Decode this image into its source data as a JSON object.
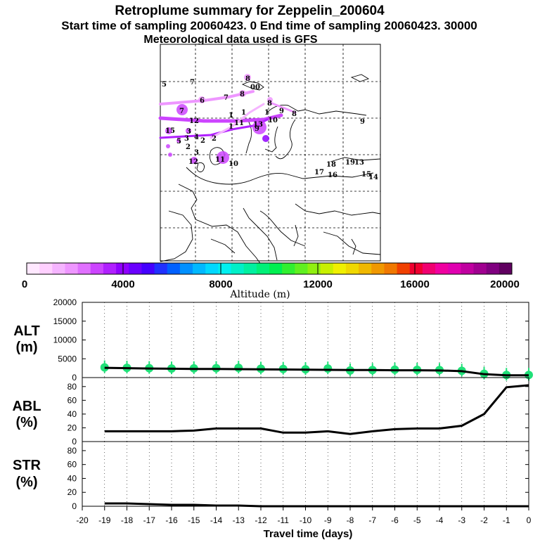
{
  "header": {
    "title": "Retroplume summary for Zeppelin_200604",
    "sampling": "Start time of sampling 20060423.     0     End time of sampling 20060423. 30000",
    "met": "Meteorological data used is GFS"
  },
  "colorbar": {
    "label": "Altitude (m)",
    "ticks": [
      "0",
      "4000",
      "8000",
      "12000",
      "16000",
      "20000"
    ],
    "colors": [
      "#ffe8ff",
      "#ffd0ff",
      "#f5b4ff",
      "#ee96ff",
      "#e070ff",
      "#cc44ff",
      "#b020ff",
      "#9000ff",
      "#6a00ff",
      "#4400ff",
      "#2030ff",
      "#0060ff",
      "#0090ff",
      "#00b8ff",
      "#00d8ff",
      "#00f0f0",
      "#00f0c8",
      "#00f0a0",
      "#00f078",
      "#00f050",
      "#30f030",
      "#60f020",
      "#90f010",
      "#c8f000",
      "#f0f000",
      "#f0d800",
      "#f0b800",
      "#f09800",
      "#f07800",
      "#f04000",
      "#f00030",
      "#f00070",
      "#f000a0",
      "#e000b0",
      "#c000a0",
      "#a00090",
      "#800080",
      "#600060"
    ]
  },
  "map": {
    "labels": [
      {
        "t": "5"
      },
      {
        "t": "7"
      },
      {
        "t": "8"
      },
      {
        "t": "00"
      },
      {
        "t": "6"
      },
      {
        "t": "7"
      },
      {
        "t": "8"
      },
      {
        "t": "9"
      },
      {
        "t": "8"
      },
      {
        "t": "8"
      },
      {
        "t": "7"
      },
      {
        "t": "1"
      },
      {
        "t": "1"
      },
      {
        "t": "1"
      },
      {
        "t": "10"
      },
      {
        "t": "11"
      },
      {
        "t": "12"
      },
      {
        "t": "13"
      },
      {
        "t": "15"
      },
      {
        "t": "3"
      },
      {
        "t": "2"
      },
      {
        "t": "1"
      },
      {
        "t": "9"
      },
      {
        "t": "4"
      },
      {
        "t": "5"
      },
      {
        "t": "3"
      },
      {
        "t": "2"
      },
      {
        "t": "3"
      },
      {
        "t": "2"
      },
      {
        "t": "12"
      },
      {
        "t": "11"
      },
      {
        "t": "10"
      },
      {
        "t": "18"
      },
      {
        "t": "19"
      },
      {
        "t": "13"
      },
      {
        "t": "17"
      },
      {
        "t": "16"
      },
      {
        "t": "15"
      },
      {
        "t": "14"
      },
      {
        "t": "9"
      }
    ]
  },
  "panels": [
    {
      "label_line1": "ALT",
      "label_line2": "(m)"
    },
    {
      "label_line1": "ABL",
      "label_line2": "(%)"
    },
    {
      "label_line1": "STR",
      "label_line2": "(%)"
    }
  ],
  "xaxis": {
    "label": "Travel time (days)"
  },
  "chart_data": [
    {
      "type": "line",
      "title": "ALT (m)",
      "ylim": [
        0,
        20000
      ],
      "yticks": [
        "20000",
        "15000",
        "10000",
        "5000",
        "0"
      ],
      "x": [
        -19,
        -18,
        -17,
        -16,
        -15,
        -14,
        -13,
        -12,
        -11,
        -10,
        -9,
        -8,
        -7,
        -6,
        -5,
        -4,
        -3,
        -2,
        -1,
        0
      ],
      "values": [
        2600,
        2500,
        2400,
        2350,
        2300,
        2300,
        2250,
        2200,
        2150,
        2100,
        2050,
        2000,
        2000,
        1950,
        1950,
        1900,
        1700,
        900,
        600,
        600
      ],
      "scatter": [
        2700,
        2600,
        2500,
        2400,
        2450,
        2500,
        2600,
        2350,
        2300,
        2200,
        2400,
        1900,
        2000,
        2100,
        2050,
        2000,
        1800,
        1000,
        700,
        700
      ]
    },
    {
      "type": "line",
      "title": "ABL (%)",
      "ylim": [
        0,
        90
      ],
      "yticks": [
        "80",
        "60",
        "40",
        "20",
        "0"
      ],
      "x": [
        -19,
        -18,
        -17,
        -16,
        -15,
        -14,
        -13,
        -12,
        -11,
        -10,
        -9,
        -8,
        -7,
        -6,
        -5,
        -4,
        -3,
        -2,
        -1,
        0
      ],
      "values": [
        15,
        15,
        15,
        15,
        16,
        19,
        19,
        19,
        13,
        13,
        15,
        11,
        15,
        18,
        19,
        19,
        23,
        40,
        79,
        82
      ]
    },
    {
      "type": "line",
      "title": "STR (%)",
      "ylim": [
        0,
        90
      ],
      "yticks": [
        "80",
        "60",
        "40",
        "20",
        "0"
      ],
      "x": [
        -19,
        -18,
        -17,
        -16,
        -15,
        -14,
        -13,
        -12,
        -11,
        -10,
        -9,
        -8,
        -7,
        -6,
        -5,
        -4,
        -3,
        -2,
        -1,
        0
      ],
      "values": [
        4,
        4,
        3,
        2,
        2,
        1,
        1,
        0,
        0,
        0,
        0,
        0,
        0,
        0,
        0,
        0,
        0,
        0,
        0,
        0
      ]
    }
  ],
  "xticks": [
    "-20",
    "-19",
    "-18",
    "-17",
    "-16",
    "-15",
    "-14",
    "-13",
    "-12",
    "-11",
    "-10",
    "-9",
    "-8",
    "-7",
    "-6",
    "-5",
    "-4",
    "-3",
    "-2",
    "-1",
    "0"
  ]
}
